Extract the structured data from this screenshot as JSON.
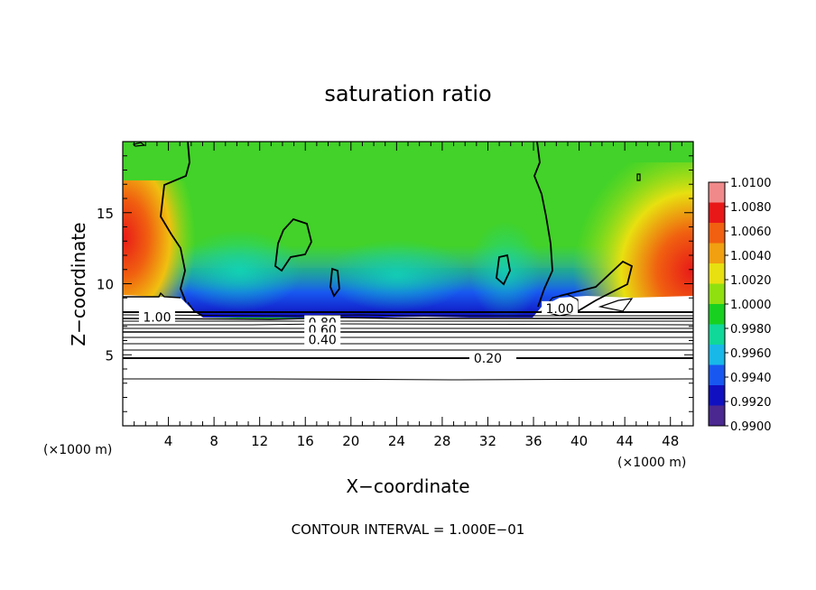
{
  "chart_data": {
    "type": "heatmap",
    "title": "saturation ratio",
    "xlabel": "X−coordinate",
    "ylabel": "Z−coordinate",
    "x_unit": "(×1000 m)",
    "y_unit": "(×1000 m)",
    "footer": "CONTOUR INTERVAL = 1.000E−01",
    "xlim": [
      0,
      50
    ],
    "ylim": [
      0,
      20
    ],
    "x_ticks": [
      "4",
      "8",
      "12",
      "16",
      "20",
      "24",
      "28",
      "32",
      "36",
      "40",
      "44",
      "48"
    ],
    "y_ticks": [
      "5",
      "10",
      "15"
    ],
    "colorbar": {
      "min": 0.99,
      "max": 1.01,
      "labels": [
        "1.0100",
        "1.0080",
        "1.0060",
        "1.0040",
        "1.0020",
        "1.0000",
        "0.9980",
        "0.9960",
        "0.9940",
        "0.9920",
        "0.9900"
      ],
      "colors": [
        "#f08a8a",
        "#e81818",
        "#f06010",
        "#f0a010",
        "#e8e010",
        "#90e010",
        "#18d020",
        "#10d898",
        "#18b8e8",
        "#1858f0",
        "#1010c0",
        "#4a2890"
      ]
    },
    "contour_labels": [
      {
        "text": "1.00",
        "x": 3,
        "z": 7.6
      },
      {
        "text": "0.80",
        "x": 17.5,
        "z": 7.2
      },
      {
        "text": "0.60",
        "x": 17.5,
        "z": 6.7
      },
      {
        "text": "0.40",
        "x": 17.5,
        "z": 6.0
      },
      {
        "text": "0.20",
        "x": 32,
        "z": 4.7
      },
      {
        "text": "1.00",
        "x": 38.3,
        "z": 8.2
      }
    ]
  }
}
